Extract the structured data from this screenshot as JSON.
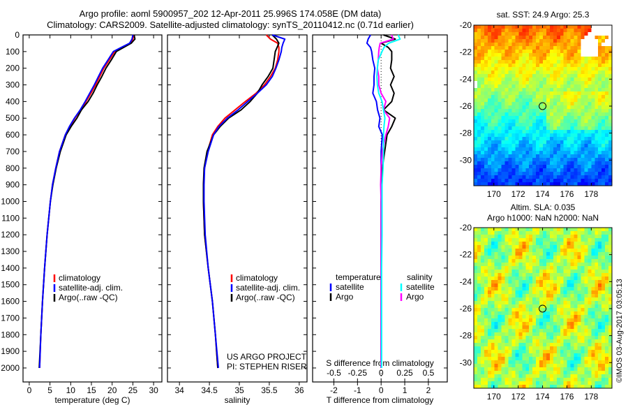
{
  "header": {
    "title_line1": "Argo profile: aoml 5900957_202 12-Apr-2011 25.996S 174.058E (DM data)",
    "title_line2": "Climatology: CARS2009. Satellite-adjusted climatology: synTS_20110412.nc (0.71d earlier)"
  },
  "credit": "©IMOS 03-Aug-2017 03:05:13",
  "project": {
    "line1": "US ARGO PROJECT",
    "line2": "PI: STEPHEN RISER"
  },
  "chart_data": [
    {
      "type": "line",
      "id": "temperature",
      "xlabel": "temperature (deg C)",
      "xlim": [
        -1.5,
        32
      ],
      "ylim": [
        2084,
        0
      ],
      "xticks": [
        0,
        5,
        10,
        15,
        20,
        25,
        30
      ],
      "yticks": [
        0,
        100,
        200,
        300,
        400,
        500,
        600,
        700,
        800,
        900,
        1000,
        1100,
        1200,
        1300,
        1400,
        1500,
        1600,
        1700,
        1800,
        1900,
        2000
      ],
      "legend": [
        "climatology",
        "satellite-adj. clim.",
        "Argo(..raw -QC)"
      ],
      "depth": [
        0,
        25,
        50,
        75,
        100,
        150,
        200,
        250,
        300,
        350,
        400,
        450,
        500,
        550,
        600,
        700,
        800,
        900,
        1000,
        1200,
        1400,
        1600,
        1800,
        2000
      ],
      "series": [
        {
          "name": "climatology",
          "color": "#ff0000",
          "values": [
            25.2,
            25.0,
            24.5,
            22.5,
            20.6,
            19.3,
            18.0,
            17.0,
            16.0,
            14.9,
            13.7,
            12.4,
            11.0,
            9.8,
            8.7,
            7.3,
            6.4,
            5.6,
            5.1,
            4.3,
            3.7,
            3.2,
            2.8,
            2.5
          ]
        },
        {
          "name": "Argo(..raw -QC)",
          "color": "#000000",
          "values": [
            25.3,
            25.5,
            24.6,
            22.8,
            21.0,
            19.8,
            18.5,
            17.5,
            16.4,
            15.4,
            14.2,
            12.6,
            11.5,
            10.1,
            8.9,
            7.5,
            6.5,
            5.7,
            5.1,
            4.3,
            3.7,
            3.2,
            2.8,
            2.4
          ]
        },
        {
          "name": "satellite-adj. clim.",
          "color": "#0000ff",
          "values": [
            25.0,
            24.8,
            24.2,
            22.2,
            20.3,
            19.0,
            17.7,
            16.7,
            15.7,
            14.6,
            13.5,
            12.3,
            10.9,
            9.7,
            8.7,
            7.3,
            6.4,
            5.6,
            5.1,
            4.3,
            3.7,
            3.2,
            2.8,
            2.5
          ]
        }
      ]
    },
    {
      "type": "line",
      "id": "salinity",
      "xlabel": "salinity",
      "xlim": [
        33.8,
        36.13
      ],
      "ylim": [
        2084,
        0
      ],
      "xticks": [
        34,
        34.5,
        35,
        35.5,
        36
      ],
      "legend": [
        "climatology",
        "satellite-adj. clim.",
        "Argo(..raw -QC)"
      ],
      "depth": [
        0,
        25,
        50,
        75,
        100,
        150,
        200,
        250,
        300,
        350,
        400,
        450,
        500,
        550,
        600,
        700,
        800,
        900,
        1000,
        1200,
        1400,
        1600,
        1800,
        2000
      ],
      "series": [
        {
          "name": "climatology",
          "color": "#ff0000",
          "values": [
            35.45,
            35.52,
            35.64,
            35.66,
            35.66,
            35.64,
            35.6,
            35.52,
            35.42,
            35.28,
            35.1,
            34.93,
            34.76,
            34.64,
            34.55,
            34.47,
            34.42,
            34.4,
            34.4,
            34.42,
            34.48,
            34.55,
            34.6,
            34.64
          ]
        },
        {
          "name": "Argo(..raw -QC)",
          "color": "#000000",
          "values": [
            35.55,
            35.62,
            35.66,
            35.63,
            35.6,
            35.58,
            35.56,
            35.48,
            35.38,
            35.3,
            35.18,
            35.03,
            34.82,
            34.68,
            34.57,
            34.46,
            34.41,
            34.4,
            34.4,
            34.42,
            34.48,
            34.55,
            34.6,
            34.64
          ]
        },
        {
          "name": "satellite-adj. clim.",
          "color": "#0000ff",
          "values": [
            35.55,
            35.76,
            35.73,
            35.71,
            35.7,
            35.66,
            35.61,
            35.55,
            35.45,
            35.3,
            35.14,
            34.98,
            34.8,
            34.66,
            34.57,
            34.48,
            34.42,
            34.41,
            34.41,
            34.43,
            34.48,
            34.55,
            34.6,
            34.65
          ]
        }
      ]
    },
    {
      "type": "line",
      "id": "difference",
      "xlabel": "T difference from climatology",
      "x2label": "S difference from climatology",
      "xlim": [
        -2.9,
        2.8
      ],
      "x2lim": [
        -0.725,
        0.7
      ],
      "ylim": [
        2084,
        0
      ],
      "xticks": [
        -2,
        -1,
        0,
        1,
        2
      ],
      "x2ticks": [
        -0.5,
        -0.25,
        0,
        0.25,
        0.5
      ],
      "legend_headers": [
        "temperature",
        "salinity"
      ],
      "legend": [
        "satellite",
        "Argo",
        "satellite",
        "Argo"
      ],
      "depth": [
        0,
        25,
        50,
        75,
        100,
        150,
        200,
        250,
        300,
        350,
        400,
        450,
        500,
        550,
        600,
        700,
        800,
        900,
        1000,
        1200,
        1400,
        1600,
        1800,
        2000
      ],
      "series": [
        {
          "name": "temperature satellite",
          "axis": "T",
          "color": "#0000ff",
          "values": [
            -0.45,
            -0.55,
            -0.6,
            -0.45,
            -0.4,
            -0.35,
            -0.27,
            -0.3,
            -0.3,
            -0.35,
            -0.2,
            -0.15,
            -0.05,
            -0.1,
            0.05,
            0,
            0,
            0,
            0,
            0,
            0,
            0,
            0,
            0
          ]
        },
        {
          "name": "temperature Argo",
          "axis": "T",
          "color": "#000000",
          "values": [
            0.1,
            0.6,
            0,
            0.3,
            0.45,
            0.45,
            0.4,
            0.55,
            0.4,
            0.55,
            0.45,
            0.1,
            0.6,
            0.45,
            0.25,
            0.15,
            0.05,
            0,
            0,
            0,
            0,
            0,
            0,
            0
          ]
        },
        {
          "name": "salinity Argo",
          "axis": "S",
          "color": "#ff00ff",
          "values": [
            0.11,
            0.13,
            -0.01,
            -0.02,
            -0.025,
            -0.03,
            -0.04,
            -0.025,
            -0.025,
            0,
            0.05,
            0.025,
            0.09,
            0.075,
            0.05,
            0.013,
            0,
            -0.005,
            0,
            0,
            0,
            0,
            0,
            0
          ]
        },
        {
          "name": "salinity satellite",
          "axis": "S",
          "color": "#00ffff",
          "values": [
            0.18,
            0.2,
            0.08,
            0.03,
            0.01,
            -0.03,
            -0.04,
            -0.045,
            -0.04,
            -0.025,
            0.01,
            0.025,
            0.04,
            0.03,
            0.025,
            0.025,
            0.02,
            0.01,
            0.01,
            0.01,
            0.005,
            0.005,
            0.005,
            0.005
          ]
        }
      ]
    },
    {
      "type": "heatmap",
      "id": "sst-map",
      "title": "sat. SST: 24.9 Argo: 25.3",
      "xlim": [
        168.35,
        179.7
      ],
      "ylim": [
        -31.9,
        -20
      ],
      "xticks": [
        170,
        172,
        174,
        176,
        178
      ],
      "yticks": [
        -20,
        -22,
        -24,
        -26,
        -28,
        -30
      ],
      "marker": {
        "lon": 174,
        "lat": -26
      }
    },
    {
      "type": "heatmap",
      "id": "sla-map",
      "title": "Altim. SLA: 0.035",
      "subtitle": "Argo h1000: NaN h2000: NaN",
      "xlim": [
        168.35,
        179.7
      ],
      "ylim": [
        -31.9,
        -20
      ],
      "xticks": [
        170,
        172,
        174,
        176,
        178
      ],
      "yticks": [
        -20,
        -22,
        -24,
        -26,
        -28,
        -30
      ],
      "marker": {
        "lon": 174,
        "lat": -26
      }
    }
  ]
}
